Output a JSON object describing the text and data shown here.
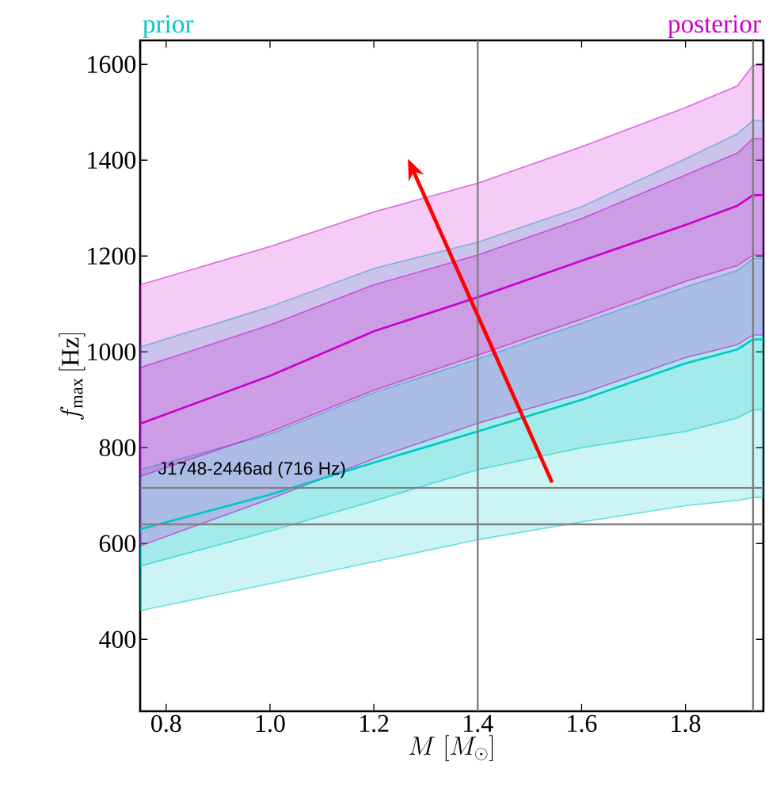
{
  "chart_data": {
    "type": "line",
    "xlabel": "M\\;[M_\\odot]",
    "ylabel": "f_{\\max}\\,[\\mathrm{Hz}]",
    "x": [
      0.75,
      1.0,
      1.2,
      1.4,
      1.6,
      1.8,
      1.9,
      1.93,
      1.95
    ],
    "series": [
      {
        "name": "prior",
        "color": "#00c8c8",
        "values": [
          630,
          702,
          769,
          834,
          900,
          976,
          1005,
          1026,
          1026
        ],
        "lower": [
          553,
          626,
          689,
          754,
          800,
          834,
          862,
          879,
          879
        ],
        "upper": [
          754,
          828,
          915,
          985,
          1060,
          1135,
          1170,
          1195,
          1195
        ]
      },
      {
        "color": "#00c8c8",
        "values": [
          null,
          null,
          null,
          null,
          null,
          null,
          null,
          null,
          null
        ],
        "lower": [
          460,
          516,
          562,
          608,
          645,
          679,
          690,
          696,
          696
        ],
        "upper": [
          1010,
          1094,
          1174,
          1229,
          1303,
          1403,
          1455,
          1483,
          1483
        ]
      },
      {
        "name": "posterior",
        "color": "#cc00cc",
        "values": [
          850,
          950,
          1043,
          1114,
          1190,
          1265,
          1305,
          1327,
          1327
        ],
        "lower": [
          740,
          833,
          920,
          993,
          1068,
          1147,
          1180,
          1202,
          1202
        ],
        "upper": [
          967,
          1056,
          1140,
          1202,
          1278,
          1369,
          1415,
          1445,
          1445
        ]
      },
      {
        "color": "#cc00cc",
        "values": [
          null,
          null,
          null,
          null,
          null,
          null,
          null,
          null,
          null
        ],
        "lower": [
          595,
          693,
          777,
          851,
          913,
          988,
          1015,
          1035,
          1035
        ],
        "upper": [
          1140,
          1220,
          1292,
          1352,
          1428,
          1510,
          1555,
          1598,
          1598
        ]
      }
    ],
    "xlim": [
      0.75,
      1.95
    ],
    "ylim": [
      250,
      1650
    ],
    "xticks": [
      0.8,
      {
        "value": 1.0,
        "label": "1.0"
      },
      1.2,
      1.4,
      1.6,
      1.8
    ],
    "yticks": [
      400,
      600,
      800,
      1000,
      1200,
      1400,
      1600
    ],
    "ref_lines": [
      {
        "axis": "x",
        "value": 1.4,
        "color": "#808080"
      },
      {
        "axis": "x",
        "value": 1.93,
        "color": "#808080"
      },
      {
        "axis": "y",
        "value": 716,
        "label": "J1748-2446ad (716 Hz)",
        "color": "#808080"
      },
      {
        "axis": "y",
        "value": 640,
        "color": "#808080"
      }
    ],
    "grid": false,
    "marker": "none",
    "line_style": "solid"
  }
}
